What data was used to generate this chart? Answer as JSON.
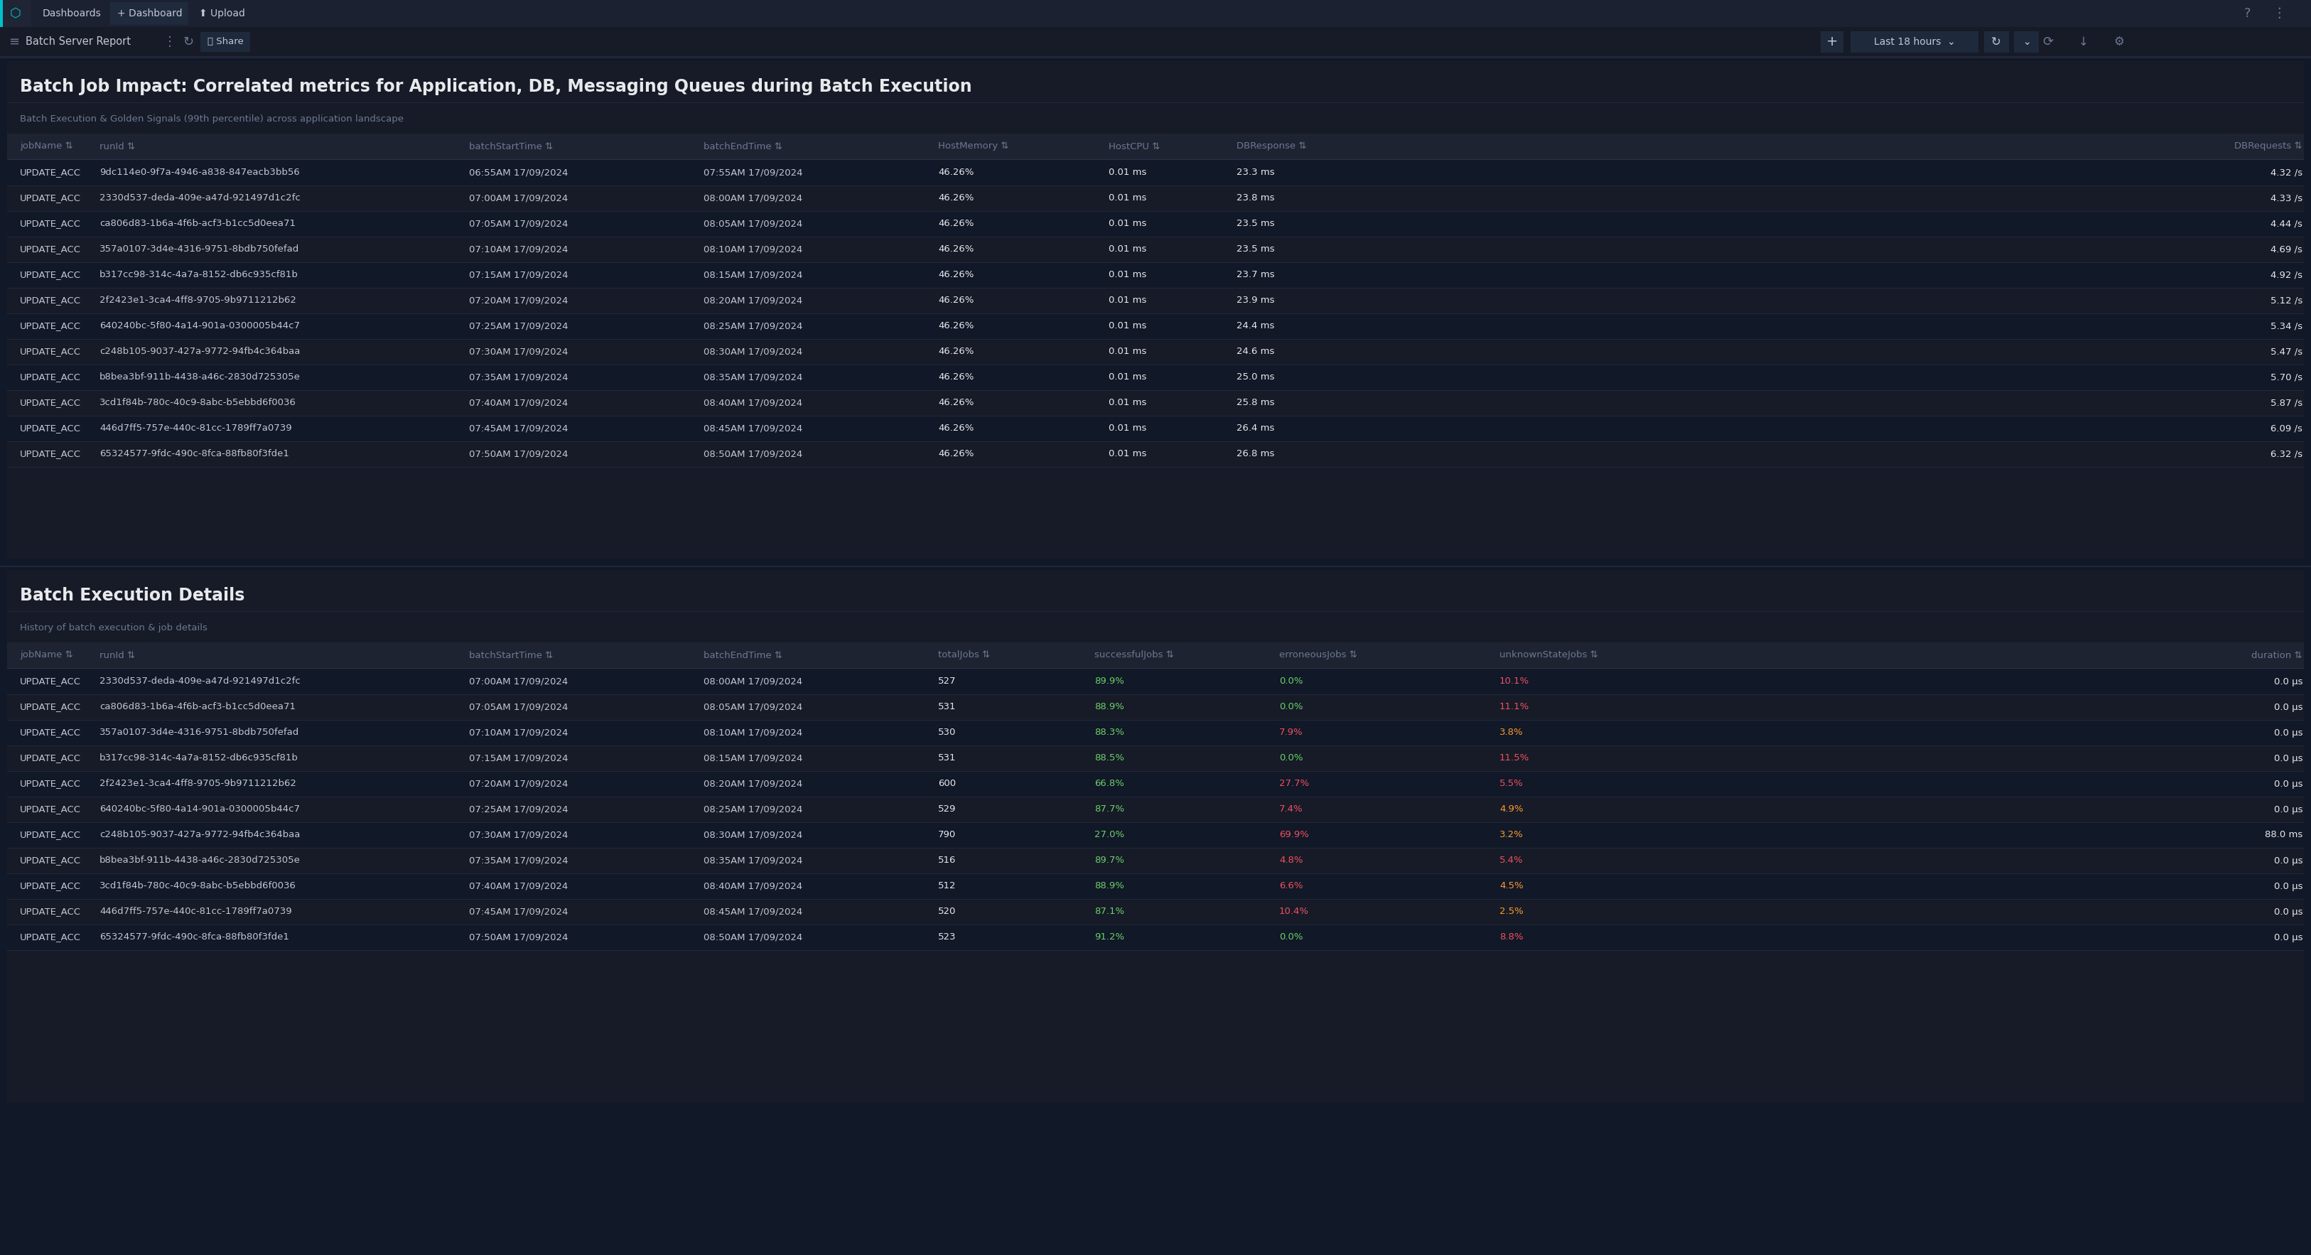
{
  "title_main": "Batch Job Impact: Correlated metrics for Application, DB, Messaging Queues during Batch Execution",
  "subtitle1": "Batch Execution & Golden Signals (99th percentile) across application landscape",
  "subtitle2": "History of batch execution & job details",
  "section2_title": "Batch Execution Details",
  "table1_headers": [
    "jobName ⇅",
    "runId ⇅",
    "batchStartTime ⇅",
    "batchEndTime ⇅",
    "HostMemory ⇅",
    "HostCPU ⇅",
    "DBResponse ⇅",
    "DBRequests ⇅"
  ],
  "table1_data": [
    [
      "UPDATE_ACC",
      "9dc114e0-9f7a-4946-a838-847eacb3bb56",
      "06:55AM 17/09/2024",
      "07:55AM 17/09/2024",
      "46.26%",
      "0.01 ms",
      "23.3 ms",
      "4.32 /s"
    ],
    [
      "UPDATE_ACC",
      "2330d537-deda-409e-a47d-921497d1c2fc",
      "07:00AM 17/09/2024",
      "08:00AM 17/09/2024",
      "46.26%",
      "0.01 ms",
      "23.8 ms",
      "4.33 /s"
    ],
    [
      "UPDATE_ACC",
      "ca806d83-1b6a-4f6b-acf3-b1cc5d0eea71",
      "07:05AM 17/09/2024",
      "08:05AM 17/09/2024",
      "46.26%",
      "0.01 ms",
      "23.5 ms",
      "4.44 /s"
    ],
    [
      "UPDATE_ACC",
      "357a0107-3d4e-4316-9751-8bdb750fefad",
      "07:10AM 17/09/2024",
      "08:10AM 17/09/2024",
      "46.26%",
      "0.01 ms",
      "23.5 ms",
      "4.69 /s"
    ],
    [
      "UPDATE_ACC",
      "b317cc98-314c-4a7a-8152-db6c935cf81b",
      "07:15AM 17/09/2024",
      "08:15AM 17/09/2024",
      "46.26%",
      "0.01 ms",
      "23.7 ms",
      "4.92 /s"
    ],
    [
      "UPDATE_ACC",
      "2f2423e1-3ca4-4ff8-9705-9b9711212b62",
      "07:20AM 17/09/2024",
      "08:20AM 17/09/2024",
      "46.26%",
      "0.01 ms",
      "23.9 ms",
      "5.12 /s"
    ],
    [
      "UPDATE_ACC",
      "640240bc-5f80-4a14-901a-0300005b44c7",
      "07:25AM 17/09/2024",
      "08:25AM 17/09/2024",
      "46.26%",
      "0.01 ms",
      "24.4 ms",
      "5.34 /s"
    ],
    [
      "UPDATE_ACC",
      "c248b105-9037-427a-9772-94fb4c364baa",
      "07:30AM 17/09/2024",
      "08:30AM 17/09/2024",
      "46.26%",
      "0.01 ms",
      "24.6 ms",
      "5.47 /s"
    ],
    [
      "UPDATE_ACC",
      "b8bea3bf-911b-4438-a46c-2830d725305e",
      "07:35AM 17/09/2024",
      "08:35AM 17/09/2024",
      "46.26%",
      "0.01 ms",
      "25.0 ms",
      "5.70 /s"
    ],
    [
      "UPDATE_ACC",
      "3cd1f84b-780c-40c9-8abc-b5ebbd6f0036",
      "07:40AM 17/09/2024",
      "08:40AM 17/09/2024",
      "46.26%",
      "0.01 ms",
      "25.8 ms",
      "5.87 /s"
    ],
    [
      "UPDATE_ACC",
      "446d7ff5-757e-440c-81cc-1789ff7a0739",
      "07:45AM 17/09/2024",
      "08:45AM 17/09/2024",
      "46.26%",
      "0.01 ms",
      "26.4 ms",
      "6.09 /s"
    ],
    [
      "UPDATE_ACC",
      "65324577-9fdc-490c-8fca-88fb80f3fde1",
      "07:50AM 17/09/2024",
      "08:50AM 17/09/2024",
      "46.26%",
      "0.01 ms",
      "26.8 ms",
      "6.32 /s"
    ]
  ],
  "table2_headers": [
    "jobName ⇅",
    "runId ⇅",
    "batchStartTime ⇅",
    "batchEndTime ⇅",
    "totalJobs ⇅",
    "successfulJobs ⇅",
    "erroneousJobs ⇅",
    "unknownStateJobs ⇅",
    "duration ⇅"
  ],
  "table2_data": [
    [
      "UPDATE_ACC",
      "2330d537-deda-409e-a47d-921497d1c2fc",
      "07:00AM 17/09/2024",
      "08:00AM 17/09/2024",
      "527",
      "89.9%",
      "0.0%",
      "10.1%",
      "0.0 μs"
    ],
    [
      "UPDATE_ACC",
      "ca806d83-1b6a-4f6b-acf3-b1cc5d0eea71",
      "07:05AM 17/09/2024",
      "08:05AM 17/09/2024",
      "531",
      "88.9%",
      "0.0%",
      "11.1%",
      "0.0 μs"
    ],
    [
      "UPDATE_ACC",
      "357a0107-3d4e-4316-9751-8bdb750fefad",
      "07:10AM 17/09/2024",
      "08:10AM 17/09/2024",
      "530",
      "88.3%",
      "7.9%",
      "3.8%",
      "0.0 μs"
    ],
    [
      "UPDATE_ACC",
      "b317cc98-314c-4a7a-8152-db6c935cf81b",
      "07:15AM 17/09/2024",
      "08:15AM 17/09/2024",
      "531",
      "88.5%",
      "0.0%",
      "11.5%",
      "0.0 μs"
    ],
    [
      "UPDATE_ACC",
      "2f2423e1-3ca4-4ff8-9705-9b9711212b62",
      "07:20AM 17/09/2024",
      "08:20AM 17/09/2024",
      "600",
      "66.8%",
      "27.7%",
      "5.5%",
      "0.0 μs"
    ],
    [
      "UPDATE_ACC",
      "640240bc-5f80-4a14-901a-0300005b44c7",
      "07:25AM 17/09/2024",
      "08:25AM 17/09/2024",
      "529",
      "87.7%",
      "7.4%",
      "4.9%",
      "0.0 μs"
    ],
    [
      "UPDATE_ACC",
      "c248b105-9037-427a-9772-94fb4c364baa",
      "07:30AM 17/09/2024",
      "08:30AM 17/09/2024",
      "790",
      "27.0%",
      "69.9%",
      "3.2%",
      "88.0 ms"
    ],
    [
      "UPDATE_ACC",
      "b8bea3bf-911b-4438-a46c-2830d725305e",
      "07:35AM 17/09/2024",
      "08:35AM 17/09/2024",
      "516",
      "89.7%",
      "4.8%",
      "5.4%",
      "0.0 μs"
    ],
    [
      "UPDATE_ACC",
      "3cd1f84b-780c-40c9-8abc-b5ebbd6f0036",
      "07:40AM 17/09/2024",
      "08:40AM 17/09/2024",
      "512",
      "88.9%",
      "6.6%",
      "4.5%",
      "0.0 μs"
    ],
    [
      "UPDATE_ACC",
      "446d7ff5-757e-440c-81cc-1789ff7a0739",
      "07:45AM 17/09/2024",
      "08:45AM 17/09/2024",
      "520",
      "87.1%",
      "10.4%",
      "2.5%",
      "0.0 μs"
    ],
    [
      "UPDATE_ACC",
      "65324577-9fdc-490c-8fca-88fb80f3fde1",
      "07:50AM 17/09/2024",
      "08:50AM 17/09/2024",
      "523",
      "91.2%",
      "0.0%",
      "8.8%",
      "0.0 μs"
    ]
  ],
  "colors": {
    "bg": "#111827",
    "nav_bg": "#111827",
    "nav_bar_top": "#1b2131",
    "nav_bar2": "#161b27",
    "panel_bg": "#161b27",
    "table_bg": "#111827",
    "header_row_bg": "#1e2332",
    "row_bg_a": "#111827",
    "row_bg_b": "#161b27",
    "sep_line": "#22283a",
    "border_line": "#2c3347",
    "text_white": "#e8e9ec",
    "text_gray": "#6e7891",
    "text_muted": "#5a6380",
    "text_nav": "#c2c6d4",
    "teal_accent": "#00c2cb",
    "green": "#6ccf69",
    "red": "#f04f5f",
    "orange": "#ff9830",
    "yellow": "#f0b429",
    "blue_accent": "#3d7ef5"
  },
  "nav1_items": [
    "Dashboards",
    "+ Dashboard",
    "Upload"
  ],
  "nav2_items": [
    "Batch Server Report",
    "Share"
  ],
  "right_nav": "Last 18 hours"
}
